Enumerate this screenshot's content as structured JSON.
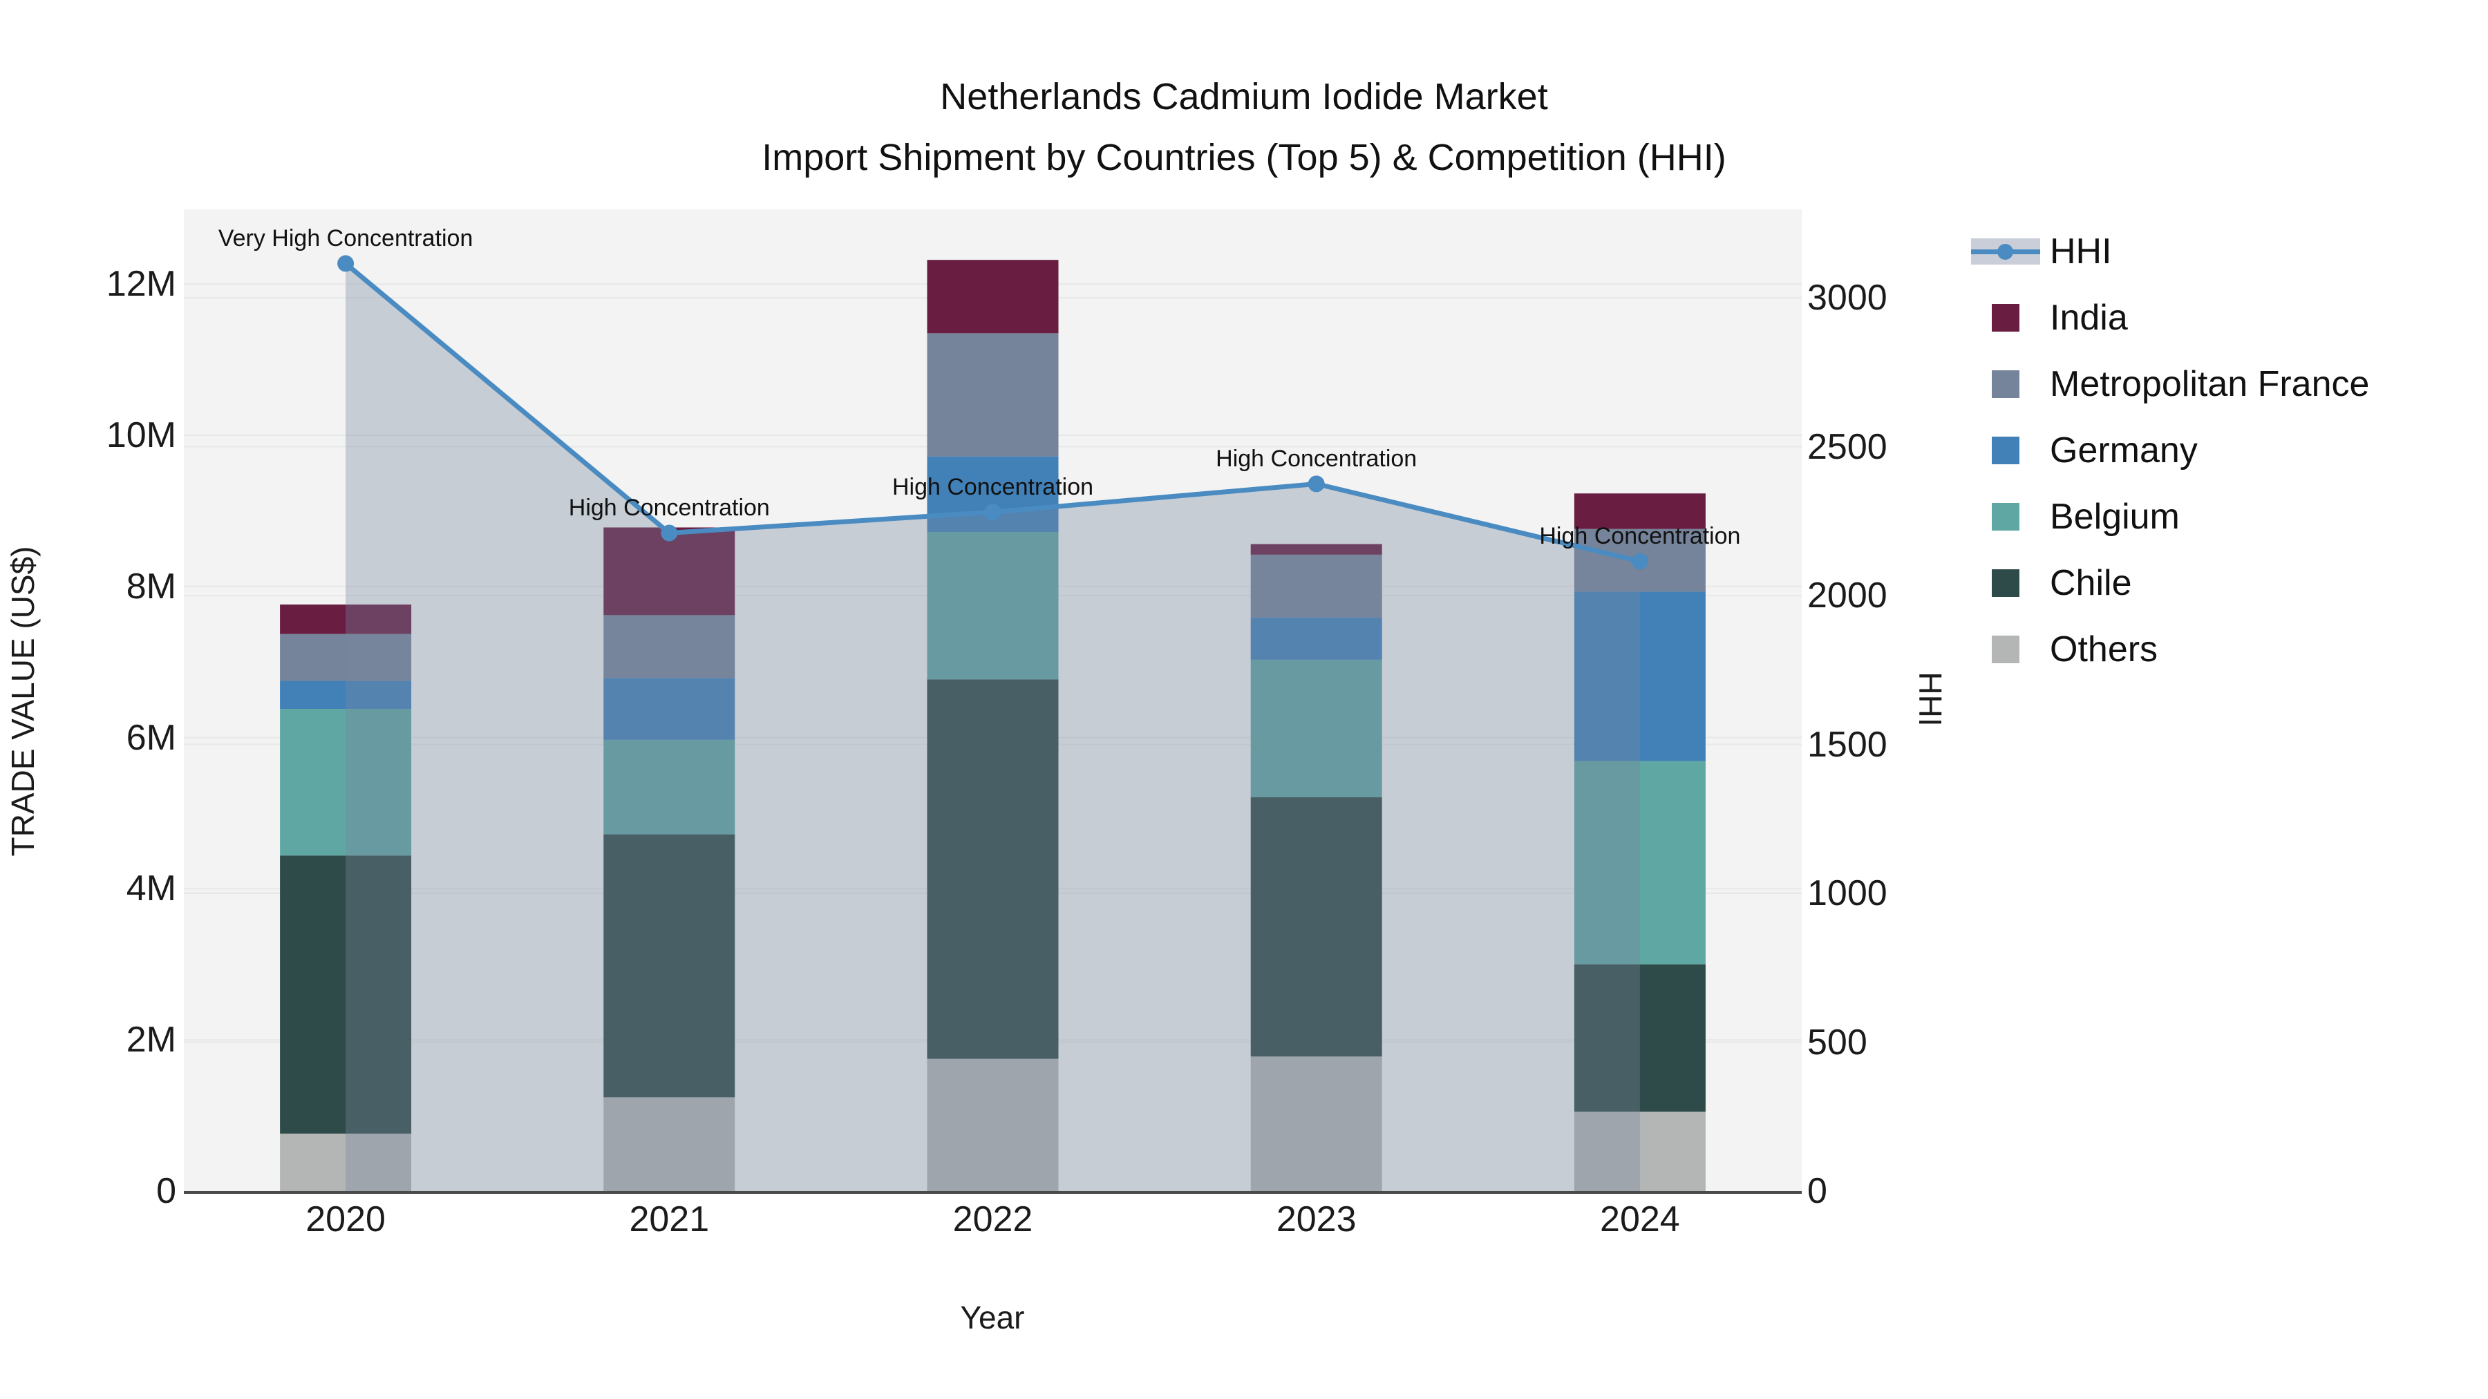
{
  "title": {
    "line1": "Netherlands Cadmium Iodide Market",
    "line2": "Import Shipment by Countries (Top 5) & Competition (HHI)"
  },
  "axes": {
    "x": {
      "title": "Year"
    },
    "y_left": {
      "title": "TRADE VALUE (US$)",
      "ticks": [
        {
          "label": "0",
          "value": 0
        },
        {
          "label": "2M",
          "value": 2
        },
        {
          "label": "4M",
          "value": 4
        },
        {
          "label": "6M",
          "value": 6
        },
        {
          "label": "8M",
          "value": 8
        },
        {
          "label": "10M",
          "value": 10
        },
        {
          "label": "12M",
          "value": 12
        }
      ]
    },
    "y_right": {
      "title": "HHI",
      "ticks": [
        {
          "label": "0",
          "value": 0
        },
        {
          "label": "500",
          "value": 500
        },
        {
          "label": "1000",
          "value": 1000
        },
        {
          "label": "1500",
          "value": 1500
        },
        {
          "label": "2000",
          "value": 2000
        },
        {
          "label": "2500",
          "value": 2500
        },
        {
          "label": "3000",
          "value": 3000
        }
      ]
    }
  },
  "legend": [
    {
      "label": "HHI",
      "type": "line",
      "color": "#4A8BC2"
    },
    {
      "label": "India",
      "type": "square",
      "color": "#681D41"
    },
    {
      "label": "Metropolitan France",
      "type": "square",
      "color": "#75849A"
    },
    {
      "label": "Germany",
      "type": "square",
      "color": "#4281B8"
    },
    {
      "label": "Belgium",
      "type": "square",
      "color": "#5FA7A3"
    },
    {
      "label": "Chile",
      "type": "square",
      "color": "#2E4B49"
    },
    {
      "label": "Others",
      "type": "square",
      "color": "#B3B6B5"
    }
  ],
  "chart_data": {
    "type": "bar+line",
    "title": "Netherlands Cadmium Iodide Market — Import Shipment by Countries (Top 5) & Competition (HHI)",
    "xlabel": "Year",
    "ylabel_left": "TRADE VALUE (US$)",
    "ylabel_right": "HHI",
    "categories": [
      "2020",
      "2021",
      "2022",
      "2023",
      "2024"
    ],
    "bar_unit": "million US$",
    "bar_stack_order_bottom_to_top": [
      "Others",
      "Chile",
      "Belgium",
      "Germany",
      "Metropolitan France",
      "India"
    ],
    "series": [
      {
        "name": "Others",
        "color": "#B3B6B5",
        "values": [
          0.76,
          1.24,
          1.75,
          1.78,
          1.05
        ]
      },
      {
        "name": "Chile",
        "color": "#2E4B49",
        "values": [
          3.68,
          3.48,
          5.02,
          3.43,
          1.95
        ]
      },
      {
        "name": "Belgium",
        "color": "#5FA7A3",
        "values": [
          1.94,
          1.25,
          1.95,
          1.82,
          2.69
        ]
      },
      {
        "name": "Germany",
        "color": "#4281B8",
        "values": [
          0.37,
          0.82,
          1.0,
          0.56,
          2.24
        ]
      },
      {
        "name": "Metropolitan France",
        "color": "#75849A",
        "values": [
          0.62,
          0.83,
          1.63,
          0.83,
          0.83
        ]
      },
      {
        "name": "India",
        "color": "#681D41",
        "values": [
          0.39,
          1.16,
          0.97,
          0.14,
          0.47
        ]
      }
    ],
    "bar_totals": [
      7.76,
      8.78,
      12.32,
      8.56,
      9.23
    ],
    "line_series": {
      "name": "HHI",
      "color": "#4A8BC2",
      "fill_color": "rgba(120,134,158,0.35)",
      "values": [
        3115,
        2210,
        2280,
        2375,
        2115
      ]
    },
    "annotations": [
      "Very High Concentration",
      "High Concentration",
      "High Concentration",
      "High Concentration",
      "High Concentration"
    ],
    "ylim_left": [
      0,
      13.0
    ],
    "ylim_right": [
      0,
      3300
    ],
    "grid": true,
    "legend_position": "right",
    "plot_bg": "#F2F3F2",
    "grid_color": "#E7E8E8",
    "axis_line_color": "#4A4A4A"
  }
}
